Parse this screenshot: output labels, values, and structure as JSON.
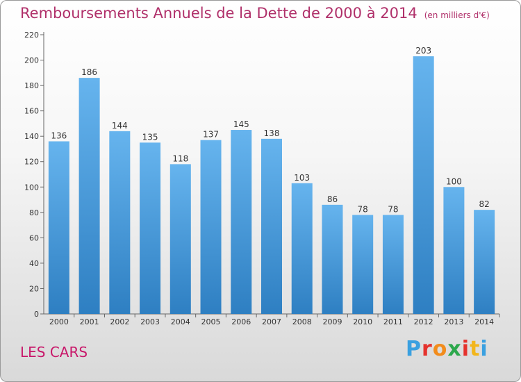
{
  "title": "Remboursements Annuels de la Dette de 2000 à 2014",
  "unit": "(en milliers d'€)",
  "town": "LES CARS",
  "logo": {
    "letters": [
      "P",
      "r",
      "o",
      "x",
      "i",
      "t",
      "i"
    ],
    "colors": [
      "#3aa0e0",
      "#e5322d",
      "#f28c1c",
      "#2ca84c",
      "#e5322d",
      "#f2b61c",
      "#3aa0e0"
    ]
  },
  "colors": {
    "bar_top": "#66b4ee",
    "bar_bottom": "#2e7fc2",
    "title": "#b0306a",
    "town": "#c8186a"
  },
  "chart_data": {
    "type": "bar",
    "title": "Remboursements Annuels de la Dette de 2000 à 2014",
    "subtitle": "(en milliers d'€)",
    "xlabel": "",
    "ylabel": "",
    "categories": [
      "2000",
      "2001",
      "2002",
      "2003",
      "2004",
      "2005",
      "2006",
      "2007",
      "2008",
      "2009",
      "2010",
      "2011",
      "2012",
      "2013",
      "2014"
    ],
    "values": [
      136,
      186,
      144,
      135,
      118,
      137,
      145,
      138,
      103,
      86,
      78,
      78,
      203,
      100,
      82
    ],
    "ylim": [
      0,
      220
    ],
    "yticks": [
      0,
      20,
      40,
      60,
      80,
      100,
      120,
      140,
      160,
      180,
      200,
      220
    ],
    "grid": false,
    "legend": "none"
  }
}
